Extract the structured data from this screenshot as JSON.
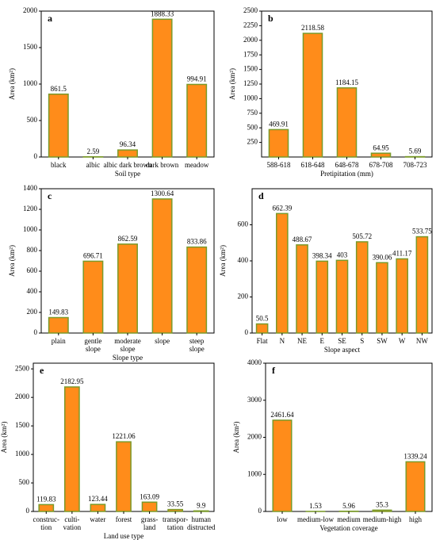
{
  "chart_data": [
    {
      "type": "bar",
      "title": "a",
      "categories": [
        "black",
        "albic",
        "albic dark brown",
        "dark brown",
        "meadow"
      ],
      "values": [
        861.5,
        2.59,
        96.34,
        1888.33,
        994.91
      ],
      "x_label": "Soil type",
      "y_label": "Area (km²)",
      "ylim": [
        0,
        2000
      ],
      "yticks": [
        0,
        500,
        1000,
        1500,
        2000
      ],
      "color": "#ff8c1a",
      "edgecolor": "#7a9a2a"
    },
    {
      "type": "bar",
      "title": "b",
      "categories": [
        "588-618",
        "618-648",
        "648-678",
        "678-708",
        "708-723"
      ],
      "values": [
        469.91,
        2118.58,
        1184.15,
        64.95,
        5.69
      ],
      "x_label": "Pretipitation (mm)",
      "y_label": "Area (km²)",
      "ylim": [
        0,
        2500
      ],
      "yticks": [
        250,
        500,
        750,
        1000,
        1250,
        1500,
        1750,
        2000,
        2250,
        2500
      ],
      "color": "#ff8c1a",
      "edgecolor": "#7a9a2a"
    },
    {
      "type": "bar",
      "title": "c",
      "categories": [
        "plain",
        "gentle\nslope",
        "moderate\nslope",
        "slope",
        "steep\nslope"
      ],
      "values": [
        149.83,
        696.71,
        862.59,
        1300.64,
        833.86
      ],
      "x_label": "Slope type",
      "y_label": "Area (km²)",
      "ylim": [
        0,
        1400
      ],
      "yticks": [
        0,
        200,
        400,
        600,
        800,
        1000,
        1200,
        1400
      ],
      "color": "#ff8c1a",
      "edgecolor": "#7a9a2a"
    },
    {
      "type": "bar",
      "title": "d",
      "categories": [
        "Flat",
        "N",
        "NE",
        "E",
        "SE",
        "S",
        "SW",
        "W",
        "NW"
      ],
      "values": [
        50.5,
        662.39,
        488.67,
        398.34,
        403,
        505.72,
        390.06,
        411.17,
        533.75
      ],
      "x_label": "Slope aspect",
      "y_label": "Area (km²)",
      "ylim": [
        0,
        800
      ],
      "yticks": [
        0,
        200,
        400,
        600
      ],
      "color": "#ff8c1a",
      "edgecolor": "#7a9a2a"
    },
    {
      "type": "bar",
      "title": "e",
      "categories": [
        "construc-\ntion",
        "culti-\nvation",
        "water",
        "forest",
        "grass-\nland",
        "transpor-\ntation",
        "human\ndistructed"
      ],
      "values": [
        119.83,
        2182.95,
        123.44,
        1221.06,
        163.09,
        33.55,
        9.9
      ],
      "x_label": "Land use type",
      "y_label": "Area (km²)",
      "ylim": [
        0,
        2600
      ],
      "yticks": [
        0,
        500,
        1000,
        1500,
        2000,
        2500
      ],
      "color": "#ff8c1a",
      "edgecolor": "#7a9a2a"
    },
    {
      "type": "bar",
      "title": "f",
      "categories": [
        "low",
        "medium-low",
        "medium",
        "medium-high",
        "high"
      ],
      "values": [
        2461.64,
        1.53,
        5.96,
        35.3,
        1339.24
      ],
      "x_label": "Vegetation coverage",
      "y_label": "Area (km²)",
      "ylim": [
        0,
        4000
      ],
      "yticks": [
        0,
        1000,
        2000,
        3000,
        4000
      ],
      "color": "#ff8c1a",
      "edgecolor": "#7a9a2a"
    }
  ]
}
